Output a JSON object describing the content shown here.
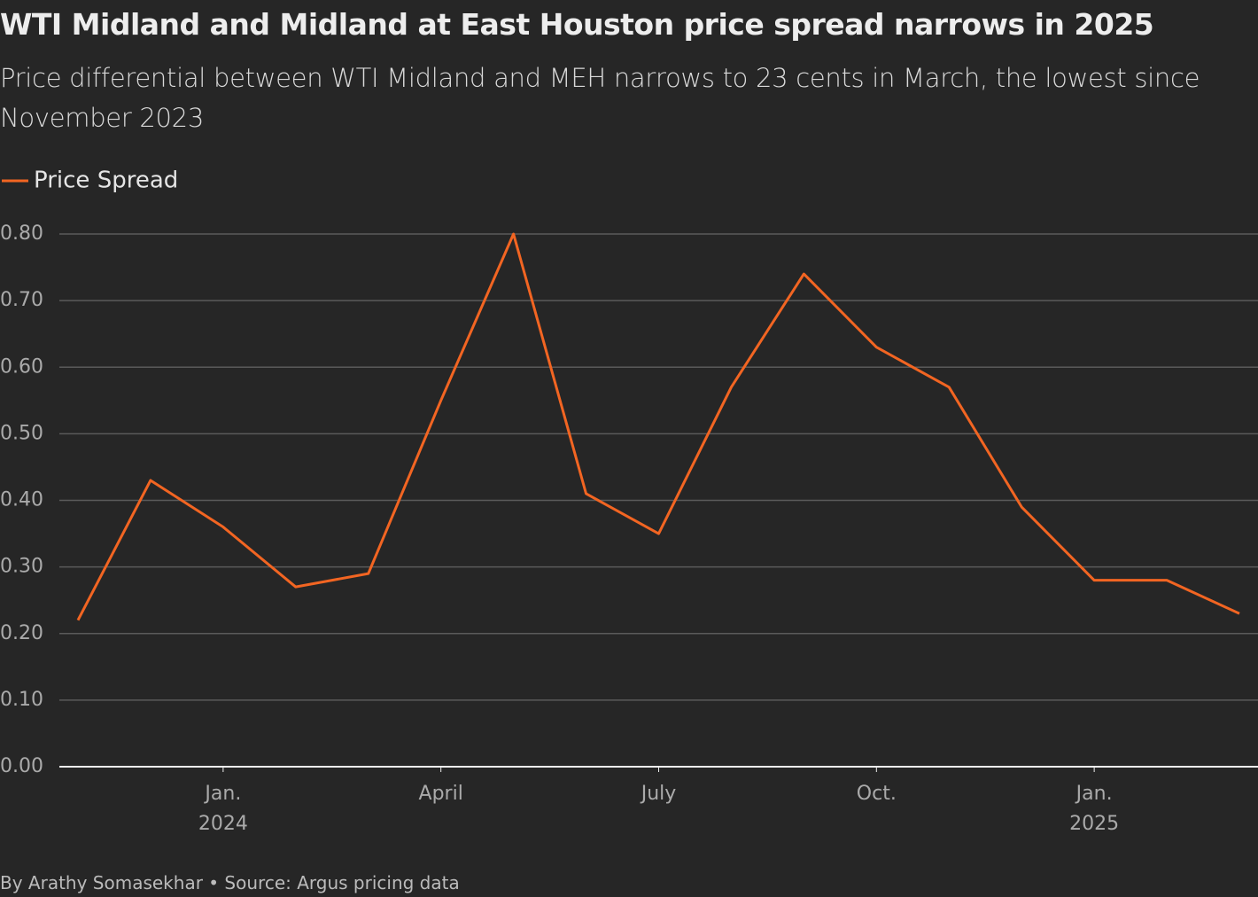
{
  "chart_data": {
    "type": "line",
    "title": "WTI Midland and Midland at East Houston price spread narrows in 2025",
    "subtitle": "Price differential between WTI Midland and MEH narrows to 23 cents in March, the lowest since November 2023",
    "footer": "By Arathy Somasekhar • Source: Argus pricing data",
    "x": [
      "2023-11",
      "2023-12",
      "2024-01",
      "2024-02",
      "2024-03",
      "2024-04",
      "2024-05",
      "2024-06",
      "2024-07",
      "2024-08",
      "2024-09",
      "2024-10",
      "2024-11",
      "2024-12",
      "2025-01",
      "2025-02",
      "2025-03"
    ],
    "series": [
      {
        "name": "Price Spread",
        "color": "#f26522",
        "values": [
          0.22,
          0.43,
          0.36,
          0.27,
          0.29,
          0.55,
          0.8,
          0.41,
          0.35,
          0.57,
          0.74,
          0.63,
          0.57,
          0.39,
          0.28,
          0.28,
          0.23
        ]
      }
    ],
    "xlim": [
      "2023-11",
      "2025-03"
    ],
    "xticks": [
      {
        "value": "2024-01",
        "label": [
          "Jan.",
          "2024"
        ]
      },
      {
        "value": "2024-04",
        "label": [
          "April"
        ]
      },
      {
        "value": "2024-07",
        "label": [
          "July"
        ]
      },
      {
        "value": "2024-10",
        "label": [
          "Oct."
        ]
      },
      {
        "value": "2025-01",
        "label": [
          "Jan.",
          "2025"
        ]
      }
    ],
    "ylim": [
      0,
      0.8
    ],
    "yticks": [
      {
        "value": 0,
        "label": "0.00"
      },
      {
        "value": 0.1,
        "label": "0.10"
      },
      {
        "value": 0.2,
        "label": "0.20"
      },
      {
        "value": 0.3,
        "label": "0.30"
      },
      {
        "value": 0.4,
        "label": "0.40"
      },
      {
        "value": 0.5,
        "label": "0.50"
      },
      {
        "value": 0.6,
        "label": "0.60"
      },
      {
        "value": 0.7,
        "label": "0.70"
      },
      {
        "value": 0.8,
        "label": "0.80"
      }
    ],
    "grid": true,
    "legend": "top-left"
  }
}
